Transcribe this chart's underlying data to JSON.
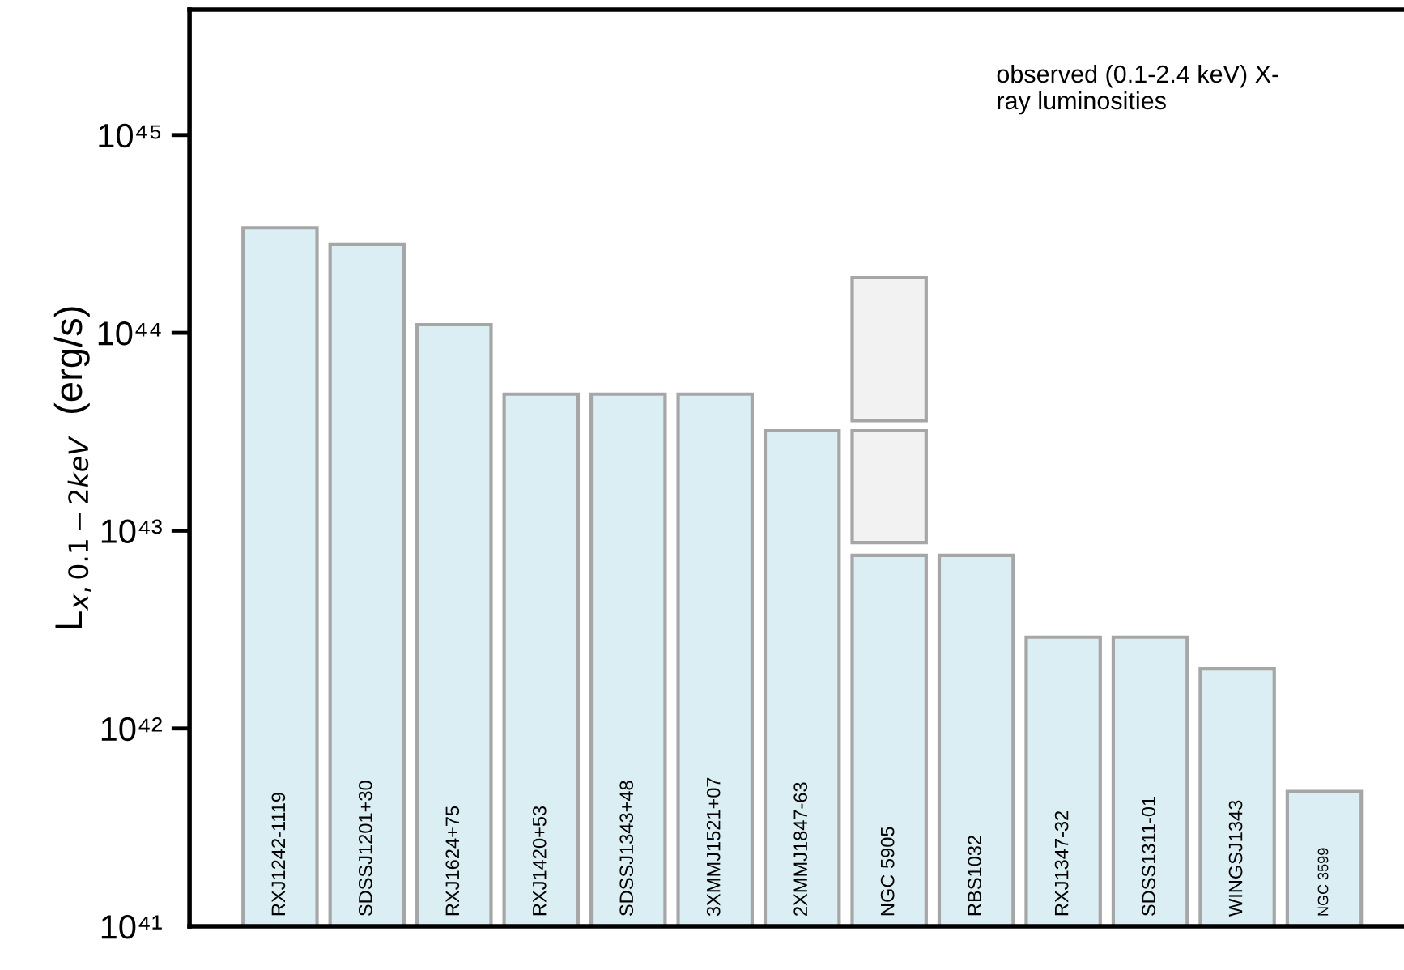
{
  "chart_data": {
    "type": "bar",
    "ylabel": "L$_{x,0.1−2keV}$  (erg/s)",
    "categories": [
      "RXJ1242-1119",
      "SDSSJ1201+30",
      "RXJ1624+75",
      "RXJ1420+53",
      "SDSSJ1343+48",
      "3XMMJ1521+07",
      "2XMMJ1847-63",
      "NGC 5905",
      "RBS1032",
      "RXJ1347-32",
      "SDSS1311-01",
      "WINGSJ1343",
      "NGC 3599"
    ],
    "series": [
      {
        "color": "#daeef3",
        "values": [
          3.4e+44,
          2.8e+44,
          1.1e+44,
          4.9e+43,
          4.9e+43,
          4.9e+43,
          3.2e+43,
          7.5e+42,
          7.5e+42,
          2.9e+42,
          2.9e+42,
          2e+42,
          4.8e+41
        ]
      },
      {
        "color": "#f2f2f2",
        "base": [
          null,
          null,
          null,
          null,
          null,
          null,
          null,
          8.7e+42,
          null,
          null,
          null,
          null,
          null
        ],
        "values": [
          null,
          null,
          null,
          null,
          null,
          null,
          null,
          2.33e+43,
          null,
          null,
          null,
          null,
          null
        ]
      },
      {
        "color": "#f2f2f2",
        "base": [
          null,
          null,
          null,
          null,
          null,
          null,
          null,
          3.6e+43,
          null,
          null,
          null,
          null,
          null
        ],
        "values": [
          null,
          null,
          null,
          null,
          null,
          null,
          null,
          1.54e+44,
          null,
          null,
          null,
          null,
          null
        ]
      }
    ],
    "log": "y",
    "ylim": [
      1e+41,
      4.3e+45
    ],
    "yticks": [
      {
        "value": 1e+41,
        "label": "10⁴¹"
      },
      {
        "value": 1e+42,
        "label": "10⁴²"
      },
      {
        "value": 1e+43,
        "label": "10⁴³"
      },
      {
        "value": 1e+44,
        "label": "10⁴⁴"
      },
      {
        "value": 1e+45,
        "label": "10⁴⁵"
      }
    ],
    "annotations": [
      "observed (0.1-2.4 keV) X-\nray luminosities"
    ],
    "grid": false,
    "legend": false
  }
}
